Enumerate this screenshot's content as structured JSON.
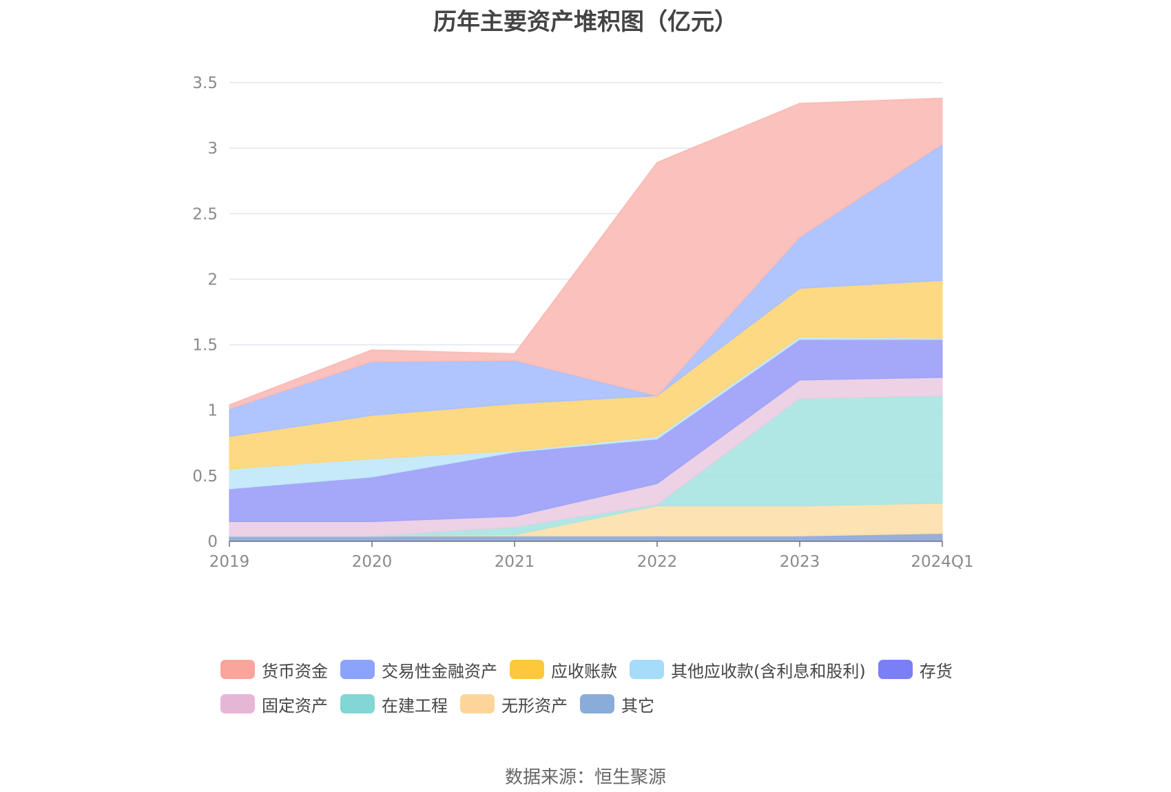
{
  "title": "历年主要资产堆积图（亿元）",
  "source": "数据来源：恒生聚源",
  "chart_data": {
    "type": "area",
    "stacked": true,
    "categories": [
      "2019",
      "2020",
      "2021",
      "2022",
      "2023",
      "2024Q1"
    ],
    "ylim": [
      0,
      3.5
    ],
    "yticks": [
      "0",
      "0.5",
      "1",
      "1.5",
      "2",
      "2.5",
      "3",
      "3.5"
    ],
    "grid": true,
    "legend_position": "bottom",
    "series": [
      {
        "name": "其它",
        "color": "#8fa8d9",
        "values": [
          0.04,
          0.04,
          0.04,
          0.04,
          0.04,
          0.06
        ]
      },
      {
        "name": "无形资产",
        "color": "#fde0ad",
        "values": [
          0.0,
          0.0,
          0.01,
          0.23,
          0.23,
          0.23
        ]
      },
      {
        "name": "在建工程",
        "color": "#a9e4e1",
        "values": [
          0.0,
          0.0,
          0.06,
          0.01,
          0.82,
          0.82
        ]
      },
      {
        "name": "固定资产",
        "color": "#eccde3",
        "values": [
          0.11,
          0.11,
          0.08,
          0.16,
          0.14,
          0.14
        ]
      },
      {
        "name": "存货",
        "color": "#9da1f7",
        "values": [
          0.25,
          0.34,
          0.49,
          0.34,
          0.31,
          0.29
        ]
      },
      {
        "name": "其他应收款(含利息和股利)",
        "color": "#c2e8fa",
        "values": [
          0.15,
          0.14,
          0.01,
          0.02,
          0.02,
          0.01
        ]
      },
      {
        "name": "应收账款",
        "color": "#fdd678",
        "values": [
          0.25,
          0.33,
          0.36,
          0.31,
          0.37,
          0.44
        ]
      },
      {
        "name": "交易性金融资产",
        "color": "#a9bffd",
        "values": [
          0.21,
          0.41,
          0.33,
          0.0,
          0.39,
          1.04
        ]
      },
      {
        "name": "货币资金",
        "color": "#fbbcb6",
        "values": [
          0.03,
          0.09,
          0.05,
          1.78,
          1.02,
          0.35
        ]
      }
    ],
    "legend": [
      {
        "name": "货币资金",
        "color": "#f9a59c"
      },
      {
        "name": "交易性金融资产",
        "color": "#8ba3fb"
      },
      {
        "name": "应收账款",
        "color": "#fdc83c"
      },
      {
        "name": "其他应收款(含利息和股利)",
        "color": "#a4dcfa"
      },
      {
        "name": "存货",
        "color": "#7b7ff6"
      },
      {
        "name": "固定资产",
        "color": "#e6b6d7"
      },
      {
        "name": "在建工程",
        "color": "#82d6d3"
      },
      {
        "name": "无形资产",
        "color": "#fdd59b"
      },
      {
        "name": "其它",
        "color": "#8aacd8"
      }
    ]
  }
}
